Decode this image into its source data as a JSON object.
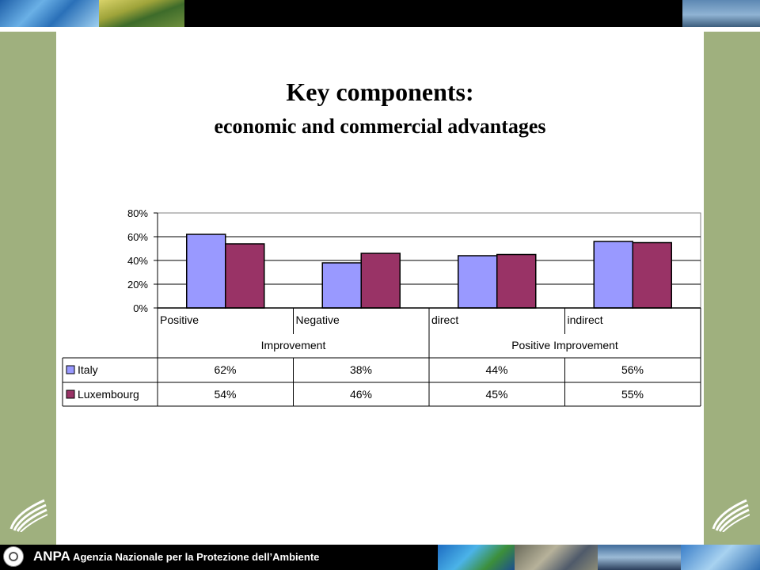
{
  "slide": {
    "title": "Key components:",
    "subtitle": "economic and commercial advantages"
  },
  "footer": {
    "abbr": "ANPA",
    "full": " Agenzia Nazionale per la Protezione dell’Ambiente"
  },
  "colors": {
    "side_panel": "#9fb07e",
    "italy": "#9999ff",
    "luxembourg": "#993366"
  },
  "chart_data": {
    "type": "bar",
    "categories": [
      "Positive",
      "Negative",
      "direct",
      "indirect"
    ],
    "groups": [
      {
        "label": "Improvement",
        "span": [
          0,
          1
        ]
      },
      {
        "label": "Positive Improvement",
        "span": [
          2,
          3
        ]
      }
    ],
    "series": [
      {
        "name": "Italy",
        "values": [
          62,
          38,
          44,
          56
        ],
        "labels": [
          "62%",
          "38%",
          "44%",
          "56%"
        ],
        "color": "#9999ff"
      },
      {
        "name": "Luxembourg",
        "values": [
          54,
          46,
          45,
          55
        ],
        "labels": [
          "54%",
          "46%",
          "45%",
          "55%"
        ],
        "color": "#993366"
      }
    ],
    "yticks": [
      "0%",
      "20%",
      "40%",
      "60%",
      "80%"
    ],
    "ylim": [
      0,
      80
    ],
    "grid": true,
    "legend": "data-table"
  }
}
